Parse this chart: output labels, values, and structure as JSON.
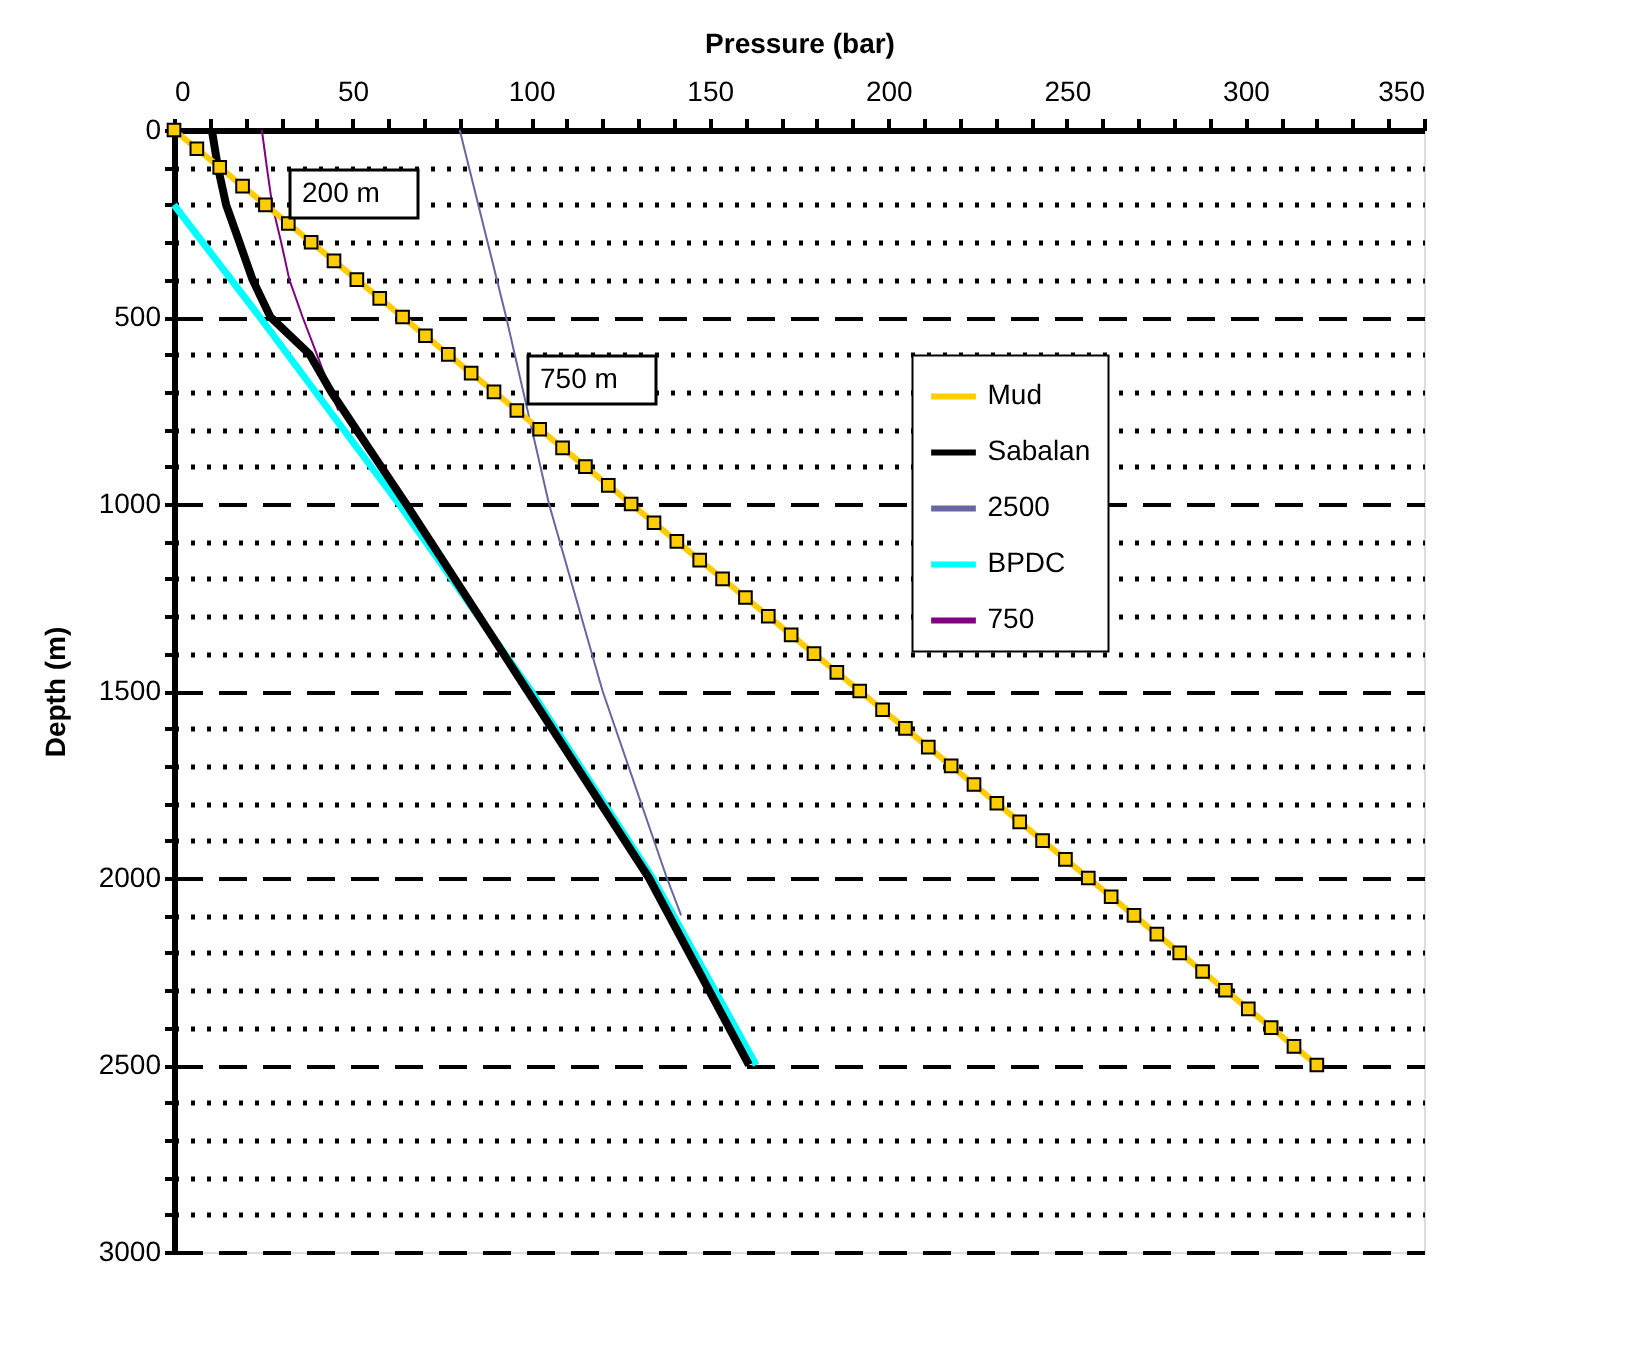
{
  "chart_data": {
    "type": "line",
    "xlabel": "Pressure (bar)",
    "ylabel": "Depth (m)",
    "xlim": [
      0,
      350
    ],
    "xticks": [
      0,
      {
        "value": 10,
        "label": null
      },
      {
        "value": 20,
        "label": null
      },
      {
        "value": 30,
        "label": null
      },
      {
        "value": 40,
        "label": null
      },
      50,
      {
        "value": 60,
        "label": null
      },
      {
        "value": 70,
        "label": null
      },
      {
        "value": 80,
        "label": null
      },
      {
        "value": 90,
        "label": null
      },
      100,
      {
        "value": 110,
        "label": null
      },
      {
        "value": 120,
        "label": null
      },
      {
        "value": 130,
        "label": null
      },
      {
        "value": 140,
        "label": null
      },
      150,
      {
        "value": 160,
        "label": null
      },
      {
        "value": 170,
        "label": null
      },
      {
        "value": 180,
        "label": null
      },
      {
        "value": 190,
        "label": null
      },
      200,
      {
        "value": 210,
        "label": null
      },
      {
        "value": 220,
        "label": null
      },
      {
        "value": 230,
        "label": null
      },
      {
        "value": 240,
        "label": null
      },
      250,
      {
        "value": 260,
        "label": null
      },
      {
        "value": 270,
        "label": null
      },
      {
        "value": 280,
        "label": null
      },
      {
        "value": 290,
        "label": null
      },
      300,
      {
        "value": 310,
        "label": null
      },
      {
        "value": 320,
        "label": null
      },
      {
        "value": 330,
        "label": null
      },
      {
        "value": 340,
        "label": null
      },
      350
    ],
    "ylim": [
      3000,
      0
    ],
    "yticks": [
      0,
      {
        "value": 100,
        "label": null
      },
      {
        "value": 200,
        "label": null
      },
      {
        "value": 300,
        "label": null
      },
      {
        "value": 400,
        "label": null
      },
      500,
      {
        "value": 600,
        "label": null
      },
      {
        "value": 700,
        "label": null
      },
      {
        "value": 800,
        "label": null
      },
      {
        "value": 900,
        "label": null
      },
      1000,
      {
        "value": 1100,
        "label": null
      },
      {
        "value": 1200,
        "label": null
      },
      {
        "value": 1300,
        "label": null
      },
      {
        "value": 1400,
        "label": null
      },
      1500,
      {
        "value": 1600,
        "label": null
      },
      {
        "value": 1700,
        "label": null
      },
      {
        "value": 1800,
        "label": null
      },
      {
        "value": 1900,
        "label": null
      },
      2000,
      {
        "value": 2100,
        "label": null
      },
      {
        "value": 2200,
        "label": null
      },
      {
        "value": 2300,
        "label": null
      },
      {
        "value": 2400,
        "label": null
      },
      2500,
      {
        "value": 2600,
        "label": null
      },
      {
        "value": 2700,
        "label": null
      },
      {
        "value": 2800,
        "label": null
      },
      {
        "value": 2900,
        "label": null
      },
      3000
    ],
    "grid": "y",
    "legend": "right",
    "series": [
      {
        "name": "Mud",
        "color": "#ffcc00",
        "marker": "square",
        "x": [
          0,
          6.4,
          12.8,
          19.2,
          25.6,
          32,
          38.4,
          44.8,
          51.2,
          57.6,
          64,
          70.4,
          76.8,
          83.2,
          89.6,
          96,
          102.4,
          108.8,
          115.2,
          121.6,
          128,
          134.4,
          140.8,
          147.2,
          153.6,
          160,
          166.4,
          172.8,
          179.2,
          185.6,
          192,
          198.4,
          204.8,
          211.2,
          217.6,
          224,
          230.4,
          236.8,
          243.2,
          249.6,
          256,
          262.4,
          268.8,
          275.2,
          281.6,
          288,
          294.4,
          300.8,
          307.2,
          313.6,
          320
        ],
        "values": [
          0,
          50,
          100,
          150,
          200,
          250,
          300,
          350,
          400,
          450,
          500,
          550,
          600,
          650,
          700,
          750,
          800,
          850,
          900,
          950,
          1000,
          1050,
          1100,
          1150,
          1200,
          1250,
          1300,
          1350,
          1400,
          1450,
          1500,
          1550,
          1600,
          1650,
          1700,
          1750,
          1800,
          1850,
          1900,
          1950,
          2000,
          2050,
          2100,
          2150,
          2200,
          2250,
          2300,
          2350,
          2400,
          2450,
          2500
        ]
      },
      {
        "name": "Sabalan",
        "color": "#000000",
        "x": [
          10.6,
          12.3,
          14.6,
          18.3,
          22,
          27,
          38,
          44,
          51,
          58,
          65,
          99,
          133,
          161
        ],
        "values": [
          0,
          100,
          200,
          300,
          400,
          500,
          600,
          700,
          800,
          900,
          1000,
          1500,
          2000,
          2500
        ]
      },
      {
        "name": "2500",
        "color": "#6666a0",
        "x": [
          80,
          93,
          105,
          120,
          138,
          142
        ],
        "values": [
          0,
          500,
          1000,
          1500,
          2000,
          2100
        ]
      },
      {
        "name": "BPDC",
        "color": "#00ffff",
        "x": [
          0,
          24,
          63,
          100,
          134,
          163
        ],
        "values": [
          200,
          500,
          1000,
          1500,
          2000,
          2500
        ]
      },
      {
        "name": "750",
        "color": "#800080",
        "x": [
          24.6,
          26,
          27.5,
          30,
          32.3,
          36,
          40,
          46
        ],
        "values": [
          0,
          100,
          200,
          300,
          400,
          500,
          600,
          750
        ]
      }
    ],
    "annotations": [
      "200 m",
      "750 m"
    ]
  }
}
